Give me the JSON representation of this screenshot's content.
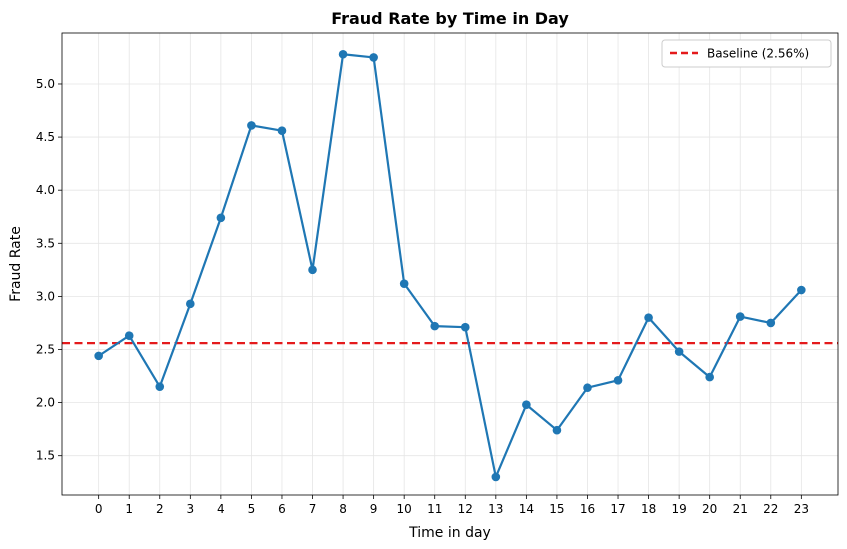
{
  "chart_data": {
    "type": "line",
    "title": "Fraud Rate by Time in Day",
    "xlabel": "Time in day",
    "ylabel": "Fraud Rate",
    "x": [
      0,
      1,
      2,
      3,
      4,
      5,
      6,
      7,
      8,
      9,
      10,
      11,
      12,
      13,
      14,
      15,
      16,
      17,
      18,
      19,
      20,
      21,
      22,
      23
    ],
    "x_tick_labels": [
      "0",
      "1",
      "2",
      "3",
      "4",
      "5",
      "6",
      "7",
      "8",
      "9",
      "10",
      "11",
      "12",
      "13",
      "14",
      "15",
      "16",
      "17",
      "18",
      "19",
      "20",
      "21",
      "22",
      "23"
    ],
    "series": [
      {
        "values": [
          2.44,
          2.63,
          2.15,
          2.93,
          3.74,
          4.61,
          4.56,
          3.25,
          5.28,
          5.25,
          3.12,
          2.72,
          2.71,
          1.3,
          1.98,
          1.74,
          2.14,
          2.21,
          2.8,
          2.48,
          2.24,
          2.81,
          2.75,
          3.06
        ],
        "color": "#1f77b4"
      }
    ],
    "baseline": {
      "label": "Baseline (2.56%)",
      "value": 2.56,
      "color": "#e41a1c",
      "style": "dashed"
    },
    "xlim": [
      -1.2,
      24.2
    ],
    "ylim": [
      1.13,
      5.48
    ],
    "y_ticks": [
      1.5,
      2.0,
      2.5,
      3.0,
      3.5,
      4.0,
      4.5,
      5.0
    ],
    "y_tick_labels": [
      "1.5",
      "2.0",
      "2.5",
      "3.0",
      "3.5",
      "4.0",
      "4.5",
      "5.0"
    ],
    "grid": true,
    "legend_position": "top-right"
  }
}
